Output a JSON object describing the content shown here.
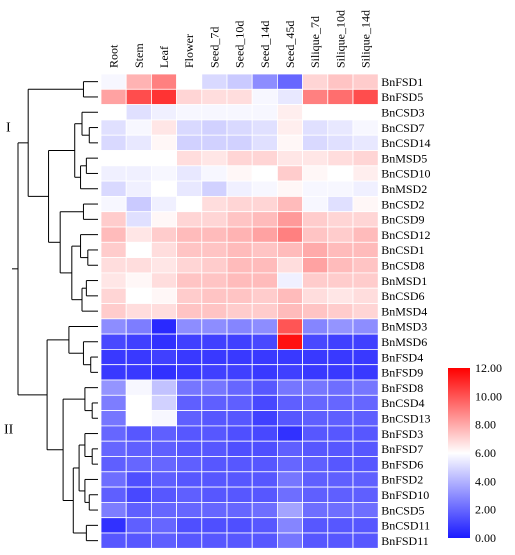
{
  "chart_data": {
    "type": "heatmap",
    "title": "",
    "columns": [
      "Root",
      "Stem",
      "Leaf",
      "Flower",
      "Seed_7d",
      "Seed_10d",
      "Seed_14d",
      "Seed_45d",
      "Silique_7d",
      "Silique_10d",
      "Silique_14d"
    ],
    "rows": [
      "BnFSD1",
      "BnFSD5",
      "BnCSD3",
      "BnCSD7",
      "BnCSD14",
      "BnMSD5",
      "BnCSD10",
      "BnMSD2",
      "BnCSD2",
      "BnCSD9",
      "BnCSD12",
      "BnCSD1",
      "BnCSD8",
      "BnMSD1",
      "BnCSD6",
      "BnMSD4",
      "BnMSD3",
      "BnMSD6",
      "BnFSD4",
      "BnFSD9",
      "BnFSD8",
      "BnCSD4",
      "BnCSD13",
      "BnFSD3",
      "BnFSD7",
      "BnFSD6",
      "BnFSD2",
      "BnFSD10",
      "BnCSD5",
      "BnCSD11",
      "BnFSD11"
    ],
    "values": [
      [
        5.8,
        7.8,
        9.0,
        6.0,
        5.0,
        4.6,
        3.0,
        2.0,
        7.0,
        7.4,
        7.2
      ],
      [
        8.2,
        10.2,
        10.8,
        7.0,
        6.8,
        6.8,
        5.8,
        5.4,
        9.0,
        9.4,
        10.2
      ],
      [
        6.0,
        5.2,
        5.6,
        5.8,
        5.8,
        5.8,
        5.8,
        6.4,
        6.0,
        6.0,
        6.0
      ],
      [
        5.2,
        5.8,
        6.6,
        5.0,
        4.8,
        5.0,
        5.2,
        6.4,
        5.2,
        5.4,
        5.8
      ],
      [
        5.0,
        5.4,
        6.2,
        4.8,
        4.8,
        4.8,
        5.2,
        6.2,
        5.0,
        5.2,
        5.4
      ],
      [
        6.0,
        6.0,
        6.0,
        6.8,
        6.6,
        7.0,
        7.0,
        6.6,
        6.6,
        6.8,
        7.0
      ],
      [
        5.6,
        5.6,
        5.8,
        5.4,
        5.8,
        6.2,
        6.0,
        7.2,
        6.2,
        6.0,
        6.4
      ],
      [
        5.0,
        5.6,
        6.0,
        5.4,
        4.8,
        5.6,
        5.8,
        6.2,
        5.8,
        5.8,
        5.6
      ],
      [
        5.8,
        4.6,
        5.6,
        6.0,
        6.8,
        7.0,
        7.0,
        7.6,
        5.8,
        5.2,
        6.2
      ],
      [
        7.2,
        5.2,
        6.2,
        7.0,
        7.0,
        7.4,
        7.6,
        8.4,
        7.2,
        7.0,
        7.0
      ],
      [
        7.6,
        6.6,
        7.2,
        7.6,
        7.6,
        7.8,
        8.2,
        9.0,
        7.4,
        7.2,
        7.6
      ],
      [
        7.2,
        6.0,
        6.8,
        7.4,
        7.4,
        7.6,
        7.4,
        7.6,
        8.0,
        7.6,
        7.6
      ],
      [
        6.8,
        6.8,
        6.6,
        7.0,
        7.2,
        7.6,
        7.6,
        6.8,
        8.2,
        7.6,
        7.4
      ],
      [
        6.6,
        6.2,
        6.8,
        7.4,
        7.4,
        7.6,
        7.6,
        5.6,
        7.2,
        7.2,
        7.2
      ],
      [
        7.0,
        6.0,
        6.2,
        7.2,
        7.4,
        7.4,
        7.2,
        7.6,
        6.8,
        6.6,
        6.8
      ],
      [
        7.2,
        6.8,
        6.8,
        7.4,
        7.4,
        7.2,
        7.2,
        7.6,
        7.4,
        7.2,
        7.0
      ],
      [
        3.0,
        2.6,
        0.4,
        3.0,
        3.0,
        2.8,
        3.0,
        10.0,
        2.8,
        3.2,
        3.0
      ],
      [
        1.2,
        1.0,
        0.6,
        1.0,
        1.0,
        1.0,
        1.2,
        11.6,
        1.2,
        1.0,
        1.0
      ],
      [
        0.8,
        0.8,
        1.0,
        0.8,
        0.8,
        0.8,
        0.8,
        0.8,
        0.8,
        0.8,
        0.8
      ],
      [
        0.8,
        0.8,
        0.6,
        0.8,
        1.0,
        1.0,
        0.8,
        1.0,
        0.8,
        0.8,
        0.8
      ],
      [
        3.2,
        5.8,
        4.4,
        2.4,
        2.4,
        2.0,
        1.6,
        2.4,
        2.4,
        2.2,
        2.4
      ],
      [
        2.6,
        6.0,
        4.8,
        1.8,
        1.8,
        1.8,
        1.2,
        1.8,
        2.0,
        2.0,
        2.0
      ],
      [
        2.4,
        6.0,
        5.8,
        1.8,
        1.6,
        1.6,
        1.0,
        1.6,
        1.8,
        1.8,
        1.8
      ],
      [
        2.0,
        1.6,
        1.8,
        1.6,
        1.6,
        1.4,
        1.2,
        0.6,
        1.6,
        1.6,
        1.6
      ],
      [
        2.0,
        1.8,
        1.8,
        1.6,
        1.6,
        1.4,
        1.4,
        1.8,
        1.6,
        1.6,
        1.6
      ],
      [
        1.8,
        2.0,
        2.0,
        1.8,
        1.6,
        1.6,
        1.6,
        2.0,
        1.8,
        1.6,
        1.6
      ],
      [
        2.2,
        1.4,
        1.8,
        1.6,
        1.6,
        1.6,
        1.6,
        2.4,
        1.8,
        1.8,
        1.8
      ],
      [
        1.8,
        1.2,
        1.6,
        1.8,
        1.6,
        1.6,
        1.6,
        2.2,
        1.8,
        1.8,
        1.8
      ],
      [
        2.6,
        1.8,
        2.0,
        2.0,
        2.0,
        2.0,
        2.2,
        3.6,
        2.2,
        2.2,
        2.2
      ],
      [
        0.6,
        1.8,
        2.0,
        1.4,
        1.4,
        1.4,
        1.6,
        2.8,
        1.6,
        1.6,
        1.6
      ],
      [
        1.6,
        1.6,
        1.8,
        1.6,
        1.6,
        1.6,
        1.6,
        2.4,
        1.6,
        1.6,
        1.6
      ]
    ],
    "clusters": [
      {
        "label": "I",
        "first_row": 0,
        "last_row": 15
      },
      {
        "label": "II",
        "first_row": 16,
        "last_row": 30
      }
    ],
    "colorbar": {
      "min": 0,
      "max": 12,
      "ticks": [
        "0.00",
        "2.00",
        "4.00",
        "6.00",
        "8.00",
        "10.00",
        "12.00"
      ],
      "colors": [
        "#1a1aff",
        "#ffffff",
        "#ff0000"
      ]
    },
    "dendrogram": {
      "merges": [
        [
          0,
          1,
          1.0
        ],
        [
          3,
          4,
          0.6
        ],
        [
          2,
          32,
          1.1
        ],
        [
          5,
          6,
          0.8
        ],
        [
          34,
          7,
          1.2
        ],
        [
          33,
          35,
          1.6
        ],
        [
          8,
          9,
          1.0
        ],
        [
          11,
          12,
          0.7
        ],
        [
          10,
          38,
          1.2
        ],
        [
          13,
          14,
          0.8
        ],
        [
          40,
          15,
          1.1
        ],
        [
          39,
          41,
          1.8
        ],
        [
          37,
          42,
          2.6
        ],
        [
          36,
          43,
          3.4
        ],
        [
          31,
          44,
          4.8
        ],
        [
          18,
          19,
          0.5
        ],
        [
          17,
          46,
          1.0
        ],
        [
          16,
          47,
          2.0
        ],
        [
          21,
          22,
          0.4
        ],
        [
          20,
          49,
          0.9
        ],
        [
          24,
          25,
          0.4
        ],
        [
          23,
          51,
          0.9
        ],
        [
          27,
          28,
          0.6
        ],
        [
          26,
          53,
          0.9
        ],
        [
          52,
          54,
          1.3
        ],
        [
          29,
          30,
          0.8
        ],
        [
          55,
          56,
          1.7
        ],
        [
          50,
          57,
          2.4
        ],
        [
          48,
          58,
          3.5
        ],
        [
          45,
          59,
          5.5
        ]
      ]
    }
  }
}
